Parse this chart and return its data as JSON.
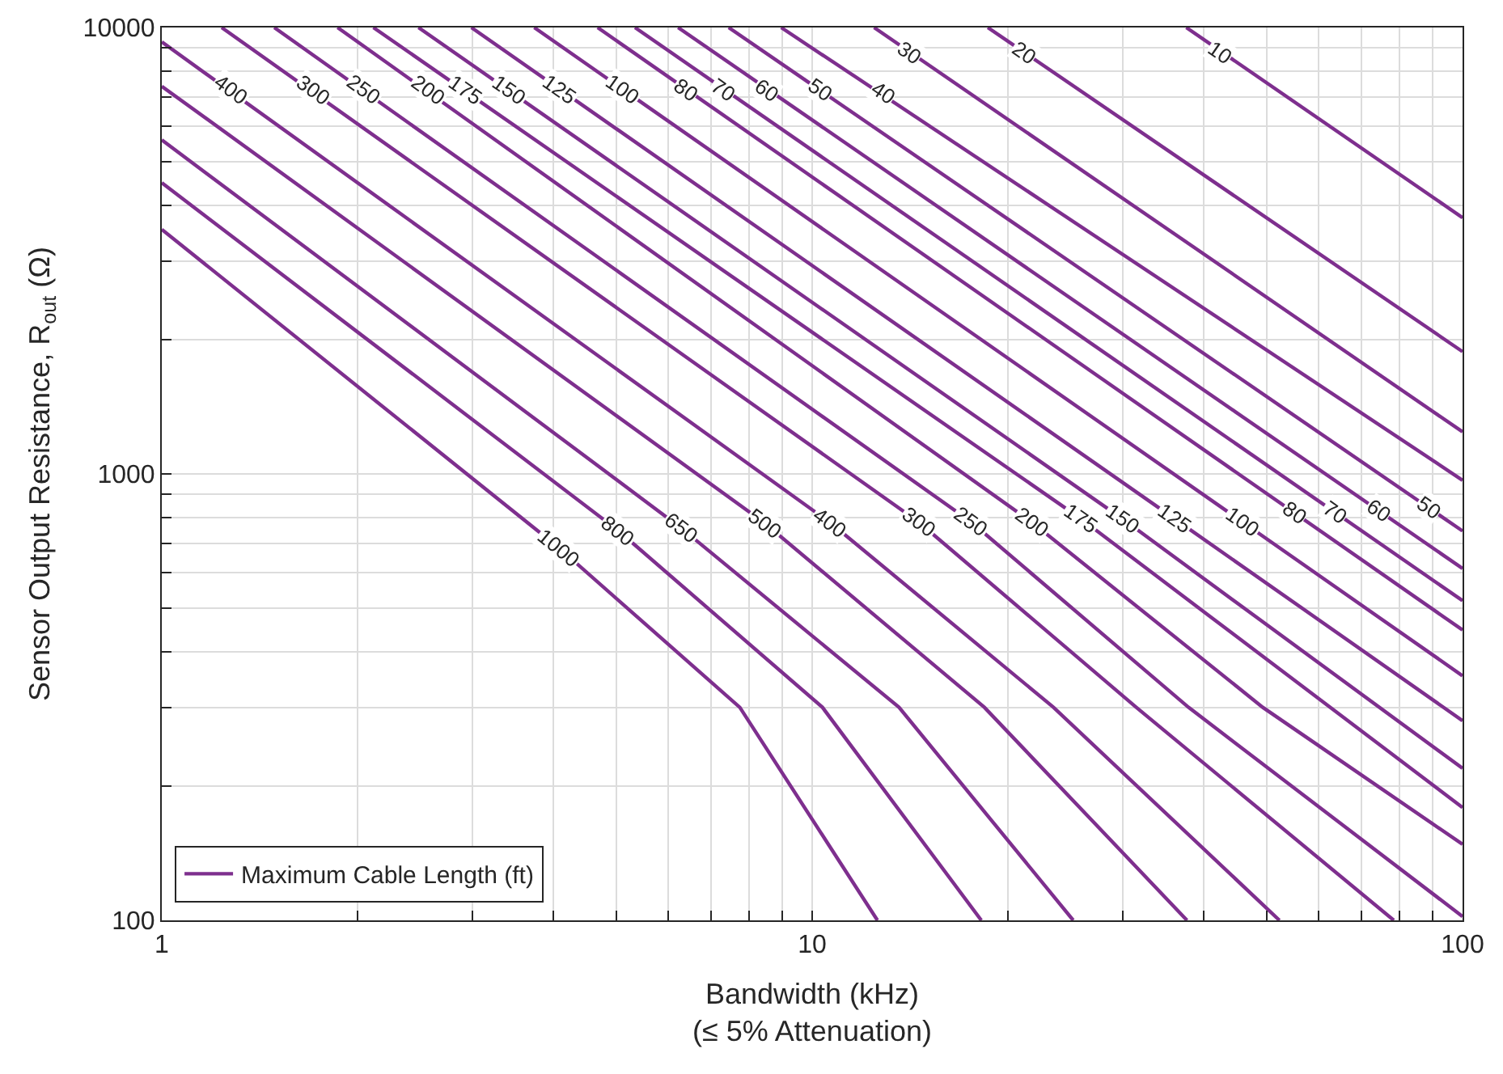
{
  "chart_data": {
    "type": "line",
    "xlabel": "Bandwidth (kHz)\n(≤ 5% Attenuation)",
    "ylabel": "Sensor Output Resistance, R$_{out}$ (Ω)",
    "legend": "bottom left",
    "log": "xy",
    "grid": true,
    "marker": "none",
    "line_style": "solid",
    "xlim": [
      1,
      100
    ],
    "ylim": [
      100,
      10000
    ],
    "xticks": [
      1,
      {
        "value": 2,
        "label": null
      },
      {
        "value": 3,
        "label": null
      },
      {
        "value": 4,
        "label": null
      },
      {
        "value": 5,
        "label": null
      },
      {
        "value": 6,
        "label": null
      },
      {
        "value": 7,
        "label": null
      },
      {
        "value": 8,
        "label": null
      },
      {
        "value": 9,
        "label": null
      },
      10,
      {
        "value": 20,
        "label": null
      },
      {
        "value": 30,
        "label": null
      },
      {
        "value": 40,
        "label": null
      },
      {
        "value": 50,
        "label": null
      },
      {
        "value": 60,
        "label": null
      },
      {
        "value": 70,
        "label": null
      },
      {
        "value": 80,
        "label": null
      },
      {
        "value": 90,
        "label": null
      },
      100
    ],
    "yticks": [
      100,
      {
        "value": 200,
        "label": null
      },
      {
        "value": 300,
        "label": null
      },
      {
        "value": 400,
        "label": null
      },
      {
        "value": 500,
        "label": null
      },
      {
        "value": 600,
        "label": null
      },
      {
        "value": 700,
        "label": null
      },
      {
        "value": 800,
        "label": null
      },
      {
        "value": 900,
        "label": null
      },
      1000,
      {
        "value": 2000,
        "label": null
      },
      {
        "value": 3000,
        "label": null
      },
      {
        "value": 4000,
        "label": null
      },
      {
        "value": 5000,
        "label": null
      },
      {
        "value": 6000,
        "label": null
      },
      {
        "value": 7000,
        "label": null
      },
      {
        "value": 8000,
        "label": null
      },
      {
        "value": 9000,
        "label": null
      },
      10000
    ],
    "series": [
      {
        "name": "Maximum Cable Length (ft)",
        "color": "#7e2f8e",
        "x": [
          1,
          4.07,
          7.74,
          12.6
        ],
        "values": [
          3528,
          685,
          300,
          100
        ]
      },
      {
        "color": "#7e2f8e",
        "x": [
          1,
          5.04,
          10.37,
          18.2
        ],
        "values": [
          4488,
          745,
          300,
          100
        ]
      },
      {
        "color": "#7e2f8e",
        "x": [
          1,
          6.3,
          13.6,
          25.2
        ],
        "values": [
          5597,
          755,
          300,
          100
        ]
      },
      {
        "color": "#7e2f8e",
        "x": [
          1,
          8.45,
          18.4,
          37.7
        ],
        "values": [
          7385,
          776,
          300,
          100
        ]
      },
      {
        "color": "#7e2f8e",
        "x": [
          1,
          10.68,
          23.5,
          52.3
        ],
        "values": [
          9281,
          776,
          300,
          100
        ]
      },
      {
        "color": "#7e2f8e",
        "x": [
          1.236,
          14.58,
          31.5,
          78.4
        ],
        "values": [
          10000,
          780,
          300,
          100
        ]
      },
      {
        "color": "#7e2f8e",
        "x": [
          1.489,
          17.56,
          37.9,
          100
        ],
        "values": [
          10000,
          780,
          300,
          102
        ]
      },
      {
        "color": "#7e2f8e",
        "x": [
          1.863,
          21.75,
          49.3,
          100
        ],
        "values": [
          10000,
          780,
          300,
          148
        ]
      },
      {
        "color": "#7e2f8e",
        "x": [
          2.115,
          25.9,
          100
        ],
        "values": [
          10000,
          793,
          179
        ]
      },
      {
        "color": "#7e2f8e",
        "x": [
          2.481,
          30.0,
          100
        ],
        "values": [
          10000,
          793,
          219
        ]
      },
      {
        "color": "#7e2f8e",
        "x": [
          2.992,
          36.1,
          100
        ],
        "values": [
          10000,
          793,
          280
        ]
      },
      {
        "color": "#7e2f8e",
        "x": [
          3.738,
          45.9,
          100
        ],
        "values": [
          10000,
          780,
          353
        ]
      },
      {
        "color": "#7e2f8e",
        "x": [
          4.678,
          100
        ],
        "values": [
          10000,
          447
        ]
      },
      {
        "color": "#7e2f8e",
        "x": [
          5.34,
          100
        ],
        "values": [
          10000,
          520
        ]
      },
      {
        "color": "#7e2f8e",
        "x": [
          6.22,
          100
        ],
        "values": [
          10000,
          614
        ]
      },
      {
        "color": "#7e2f8e",
        "x": [
          7.44,
          100
        ],
        "values": [
          10000,
          745
        ]
      },
      {
        "color": "#7e2f8e",
        "x": [
          8.96,
          100
        ],
        "values": [
          10000,
          968
        ]
      },
      {
        "color": "#7e2f8e",
        "x": [
          12.45,
          100
        ],
        "values": [
          10000,
          1242
        ]
      },
      {
        "color": "#7e2f8e",
        "x": [
          18.62,
          100
        ],
        "values": [
          10000,
          1879
        ]
      },
      {
        "color": "#7e2f8e",
        "x": [
          37.6,
          100
        ],
        "values": [
          10000,
          3750
        ]
      }
    ],
    "annotations": [
      {
        "text": "400",
        "x": 1.28,
        "y": 7270
      },
      {
        "text": "300",
        "x": 1.71,
        "y": 7270
      },
      {
        "text": "250",
        "x": 2.05,
        "y": 7270
      },
      {
        "text": "200",
        "x": 2.57,
        "y": 7270
      },
      {
        "text": "175",
        "x": 2.93,
        "y": 7270
      },
      {
        "text": "150",
        "x": 3.42,
        "y": 7270
      },
      {
        "text": "125",
        "x": 4.1,
        "y": 7270
      },
      {
        "text": "100",
        "x": 5.13,
        "y": 7270
      },
      {
        "text": "80",
        "x": 6.4,
        "y": 7270
      },
      {
        "text": "70",
        "x": 7.3,
        "y": 7270
      },
      {
        "text": "60",
        "x": 8.5,
        "y": 7270
      },
      {
        "text": "50",
        "x": 10.3,
        "y": 7270
      },
      {
        "text": "40",
        "x": 12.9,
        "y": 7160
      },
      {
        "text": "30",
        "x": 14.1,
        "y": 8800
      },
      {
        "text": "20",
        "x": 21.2,
        "y": 8800
      },
      {
        "text": "10",
        "x": 42.4,
        "y": 8800
      },
      {
        "text": "1000",
        "x": 4.07,
        "y": 685
      },
      {
        "text": "800",
        "x": 5.04,
        "y": 745
      },
      {
        "text": "650",
        "x": 6.3,
        "y": 755
      },
      {
        "text": "500",
        "x": 8.45,
        "y": 776
      },
      {
        "text": "400",
        "x": 10.68,
        "y": 776
      },
      {
        "text": "300",
        "x": 14.58,
        "y": 780
      },
      {
        "text": "250",
        "x": 17.56,
        "y": 780
      },
      {
        "text": "200",
        "x": 21.75,
        "y": 780
      },
      {
        "text": "175",
        "x": 25.9,
        "y": 793
      },
      {
        "text": "150",
        "x": 30.0,
        "y": 793
      },
      {
        "text": "125",
        "x": 36.1,
        "y": 793
      },
      {
        "text": "100",
        "x": 45.9,
        "y": 780
      },
      {
        "text": "80",
        "x": 55,
        "y": 820
      },
      {
        "text": "70",
        "x": 63.6,
        "y": 821
      },
      {
        "text": "60",
        "x": 74.3,
        "y": 828
      },
      {
        "text": "50",
        "x": 88.6,
        "y": 841
      }
    ]
  }
}
